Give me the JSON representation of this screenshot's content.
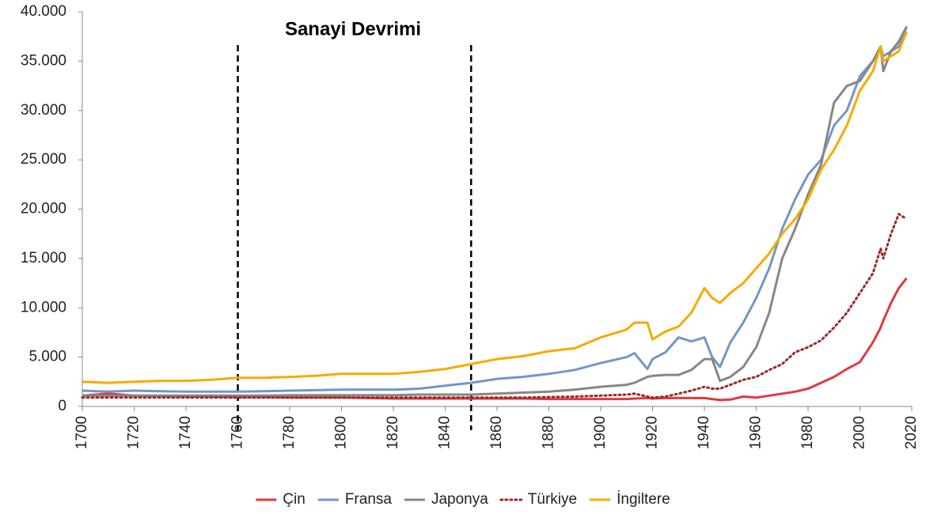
{
  "chart_data": {
    "type": "line",
    "annotation": {
      "text": "Sanayi Devrimi",
      "x": [
        1760,
        1850
      ]
    },
    "x": [
      1700,
      1710,
      1720,
      1730,
      1740,
      1750,
      1760,
      1770,
      1780,
      1790,
      1800,
      1810,
      1820,
      1830,
      1840,
      1850,
      1860,
      1870,
      1880,
      1890,
      1900,
      1910,
      1913,
      1918,
      1920,
      1925,
      1930,
      1935,
      1940,
      1943,
      1946,
      1950,
      1955,
      1960,
      1965,
      1970,
      1975,
      1980,
      1985,
      1990,
      1995,
      2000,
      2005,
      2008,
      2009,
      2012,
      2015,
      2018
    ],
    "series": [
      {
        "name": "Çin",
        "color": "#e0393e",
        "style": "solid",
        "values": [
          1100,
          1300,
          1100,
          1050,
          1000,
          1000,
          950,
          950,
          900,
          900,
          900,
          850,
          800,
          800,
          800,
          800,
          800,
          800,
          750,
          750,
          750,
          750,
          800,
          850,
          800,
          850,
          850,
          850,
          850,
          750,
          650,
          700,
          1000,
          900,
          1100,
          1300,
          1500,
          1800,
          2400,
          3000,
          3800,
          4500,
          6500,
          8000,
          8700,
          10500,
          12000,
          13000
        ]
      },
      {
        "name": "Fransa",
        "color": "#7396c8",
        "style": "solid",
        "values": [
          1600,
          1500,
          1600,
          1550,
          1500,
          1500,
          1500,
          1550,
          1600,
          1650,
          1700,
          1700,
          1700,
          1800,
          2100,
          2400,
          2800,
          3000,
          3300,
          3700,
          4400,
          5000,
          5400,
          3800,
          4800,
          5500,
          7000,
          6600,
          7000,
          5000,
          4000,
          6500,
          8500,
          11000,
          14000,
          18000,
          21000,
          23500,
          25000,
          28500,
          30000,
          33500,
          35000,
          36500,
          35500,
          36000,
          36500,
          38500
        ]
      },
      {
        "name": "Japonya",
        "color": "#878787",
        "style": "solid",
        "values": [
          1100,
          1100,
          1100,
          1100,
          1100,
          1100,
          1100,
          1100,
          1150,
          1150,
          1150,
          1150,
          1150,
          1200,
          1200,
          1200,
          1300,
          1400,
          1500,
          1700,
          2000,
          2200,
          2400,
          3000,
          3100,
          3200,
          3200,
          3700,
          4800,
          4800,
          2600,
          3000,
          4000,
          6000,
          9500,
          15000,
          18000,
          21500,
          24500,
          30800,
          32500,
          33000,
          35000,
          36500,
          34000,
          36000,
          37000,
          38500
        ]
      },
      {
        "name": "Türkiye",
        "color": "#9b2a2a",
        "style": "dotted",
        "values": [
          900,
          900,
          900,
          900,
          900,
          900,
          900,
          900,
          900,
          900,
          900,
          900,
          900,
          900,
          900,
          900,
          900,
          900,
          950,
          1000,
          1100,
          1200,
          1300,
          1000,
          900,
          1000,
          1300,
          1600,
          2000,
          1800,
          1800,
          2200,
          2700,
          3000,
          3700,
          4300,
          5500,
          6000,
          6700,
          8000,
          9500,
          11500,
          13500,
          16000,
          15000,
          17500,
          19500,
          19000
        ]
      },
      {
        "name": "İngiltere",
        "color": "#f5ab00",
        "style": "solid",
        "values": [
          2500,
          2400,
          2500,
          2600,
          2600,
          2700,
          2900,
          2900,
          3000,
          3100,
          3300,
          3300,
          3300,
          3500,
          3800,
          4300,
          4800,
          5100,
          5600,
          5900,
          7000,
          7800,
          8500,
          8500,
          6800,
          7600,
          8100,
          9500,
          12000,
          11000,
          10500,
          11500,
          12500,
          14000,
          15500,
          17500,
          19000,
          21000,
          24000,
          26000,
          28500,
          32000,
          34000,
          36500,
          35000,
          35500,
          36000,
          38000
        ]
      }
    ],
    "xlim": [
      1700,
      2020
    ],
    "xticks": [
      1700,
      1720,
      1740,
      1760,
      1780,
      1800,
      1820,
      1840,
      1860,
      1880,
      1900,
      1920,
      1940,
      1960,
      1980,
      2000,
      2020
    ],
    "ylim": [
      0,
      40000
    ],
    "yticks": [
      0,
      {
        "value": 5000,
        "label": "5.000"
      },
      {
        "value": 10000,
        "label": "10.000"
      },
      {
        "value": 15000,
        "label": "15.000"
      },
      {
        "value": 20000,
        "label": "20.000"
      },
      {
        "value": 25000,
        "label": "25.000"
      },
      {
        "value": 30000,
        "label": "30.000"
      },
      {
        "value": 35000,
        "label": "35.000"
      },
      {
        "value": 40000,
        "label": "40.000"
      }
    ]
  }
}
